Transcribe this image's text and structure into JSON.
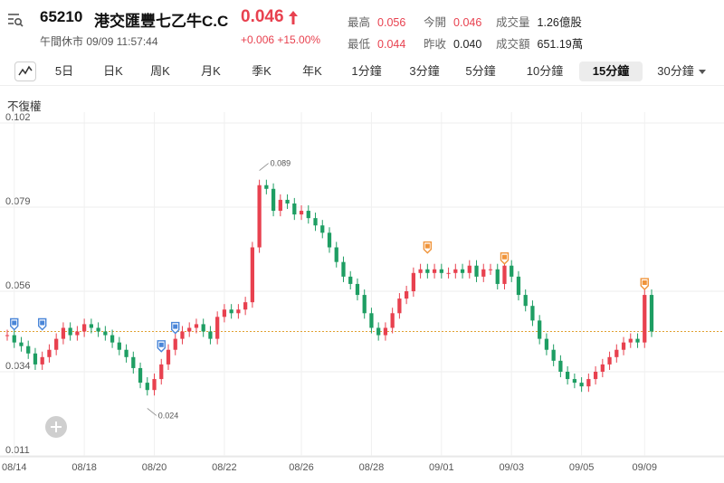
{
  "header": {
    "code": "65210",
    "name": "港交匯豐七乙牛C.C",
    "price": "0.046",
    "session": "午間休市 09/09 11:57:44",
    "change": "+0.006 +15.00%",
    "stats": [
      {
        "label": "最高",
        "value": "0.056",
        "tone": "red"
      },
      {
        "label": "今開",
        "value": "0.046",
        "tone": "red"
      },
      {
        "label": "成交量",
        "value": "1.26億股",
        "tone": "dark"
      },
      {
        "label": "最低",
        "value": "0.044",
        "tone": "red"
      },
      {
        "label": "昨收",
        "value": "0.040",
        "tone": "dark"
      },
      {
        "label": "成交額",
        "value": "651.19萬",
        "tone": "dark"
      }
    ]
  },
  "tabs": {
    "items": [
      "5日",
      "日K",
      "周K",
      "月K",
      "季K",
      "年K",
      "1分鐘",
      "3分鐘",
      "5分鐘",
      "10分鐘",
      "15分鐘",
      "30分鐘"
    ],
    "active": "15分鐘"
  },
  "adjust_label": "不復權",
  "colors": {
    "up": "#e8414f",
    "down": "#1e9e63",
    "ref": "#e0a030",
    "marker_blue": "#4a86d8",
    "marker_orange": "#f0943a"
  },
  "chart_data": {
    "type": "candlestick",
    "title": "",
    "xlabel": "",
    "ylabel": "",
    "ylim": [
      0.011,
      0.102
    ],
    "yticks": [
      "0.102",
      "0.079",
      "0.056",
      "0.034",
      "0.011"
    ],
    "xticks": [
      "08/14",
      "08/18",
      "08/20",
      "08/22",
      "08/26",
      "08/28",
      "09/01",
      "09/03",
      "09/05",
      "09/09"
    ],
    "reference_line": 0.045,
    "annotations": [
      {
        "text": "0.089",
        "x_index": 36,
        "value": 0.089
      },
      {
        "text": "0.024",
        "x_index": 20,
        "value": 0.024
      }
    ],
    "event_markers": [
      {
        "x_index": 1,
        "value": 0.045,
        "color": "blue"
      },
      {
        "x_index": 5,
        "value": 0.045,
        "color": "blue"
      },
      {
        "x_index": 22,
        "value": 0.039,
        "color": "blue"
      },
      {
        "x_index": 24,
        "value": 0.044,
        "color": "blue"
      },
      {
        "x_index": 60,
        "value": 0.066,
        "color": "orange"
      },
      {
        "x_index": 71,
        "value": 0.063,
        "color": "orange"
      },
      {
        "x_index": 91,
        "value": 0.056,
        "color": "orange"
      }
    ],
    "close": [
      0.044,
      0.042,
      0.041,
      0.039,
      0.036,
      0.038,
      0.04,
      0.043,
      0.046,
      0.044,
      0.045,
      0.047,
      0.046,
      0.045,
      0.044,
      0.042,
      0.04,
      0.038,
      0.035,
      0.031,
      0.029,
      0.032,
      0.036,
      0.04,
      0.043,
      0.045,
      0.046,
      0.047,
      0.045,
      0.043,
      0.049,
      0.051,
      0.05,
      0.051,
      0.053,
      0.068,
      0.085,
      0.084,
      0.078,
      0.081,
      0.08,
      0.077,
      0.078,
      0.076,
      0.074,
      0.072,
      0.068,
      0.064,
      0.06,
      0.058,
      0.055,
      0.05,
      0.046,
      0.044,
      0.046,
      0.05,
      0.054,
      0.056,
      0.061,
      0.062,
      0.061,
      0.062,
      0.061,
      0.061,
      0.062,
      0.061,
      0.063,
      0.06,
      0.062,
      0.062,
      0.058,
      0.063,
      0.06,
      0.055,
      0.052,
      0.048,
      0.043,
      0.04,
      0.037,
      0.034,
      0.032,
      0.031,
      0.03,
      0.032,
      0.034,
      0.036,
      0.038,
      0.04,
      0.042,
      0.043,
      0.042,
      0.055,
      0.045
    ]
  }
}
